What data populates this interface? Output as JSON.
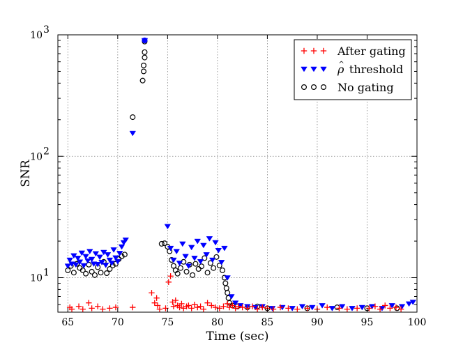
{
  "chart_data": {
    "type": "scatter",
    "xlabel": "Time (sec)",
    "ylabel": "SNR",
    "xlim": [
      64,
      100
    ],
    "ylim": [
      5.2,
      1000
    ],
    "y_scale": "log",
    "grid": true,
    "legend_position": "top-right",
    "x_ticks": [
      65,
      70,
      75,
      80,
      85,
      90,
      95,
      100
    ],
    "x_tick_labels": [
      "65",
      "70",
      "75",
      "80",
      "85",
      "90",
      "95",
      "100"
    ],
    "y_ticks": [
      {
        "value": 10,
        "base": "10",
        "exp": "1"
      },
      {
        "value": 100,
        "base": "10",
        "exp": "2"
      },
      {
        "value": 1000,
        "base": "10",
        "exp": "3"
      }
    ],
    "series": [
      {
        "name": "After gating",
        "marker": "plus",
        "color": "#ff0000",
        "x": [
          65.2,
          65.4,
          66.1,
          66.5,
          67.1,
          67.4,
          68.0,
          68.5,
          69.2,
          69.8,
          71.5,
          73.4,
          73.7,
          73.9,
          74.0,
          74.2,
          74.8,
          75.1,
          75.3,
          75.5,
          75.6,
          75.8,
          76.0,
          76.2,
          76.4,
          76.6,
          76.9,
          77.1,
          77.4,
          77.7,
          78.0,
          78.3,
          78.6,
          79.0,
          79.4,
          79.8,
          80.2,
          80.6,
          81.0,
          81.2,
          81.5,
          81.8,
          82.1,
          82.5,
          83.0,
          83.5,
          84.0,
          84.5,
          85.0,
          85.6,
          86.3,
          87.1,
          88.0,
          89.0,
          90.0,
          91.0,
          92.2,
          93.0,
          94.0,
          95.2,
          95.8,
          96.3,
          96.8,
          97.3,
          97.9,
          98.4
        ],
        "y": [
          5.7,
          5.5,
          5.8,
          5.5,
          6.2,
          5.6,
          5.8,
          5.5,
          5.6,
          5.7,
          5.7,
          7.5,
          6.2,
          6.8,
          5.9,
          5.5,
          5.6,
          9.2,
          10.3,
          6.3,
          5.8,
          6.5,
          5.9,
          5.7,
          6.1,
          5.6,
          5.8,
          5.9,
          5.6,
          6.0,
          5.7,
          5.8,
          5.5,
          6.2,
          5.9,
          5.7,
          5.6,
          5.8,
          6.1,
          5.7,
          5.9,
          5.6,
          5.8,
          5.7,
          5.6,
          5.8,
          5.5,
          5.7,
          5.6,
          5.5,
          5.7,
          5.6,
          5.5,
          5.6,
          5.5,
          5.7,
          5.6,
          5.5,
          5.6,
          5.6,
          5.8,
          5.5,
          5.9,
          5.6,
          5.7,
          5.5
        ]
      },
      {
        "name": "ρ̂ threshold",
        "legend_base": "ρ",
        "legend_accent": "^",
        "legend_suffix": " threshold",
        "marker": "triangle-down",
        "color": "#0000ff",
        "x": [
          65.0,
          65.2,
          65.4,
          65.6,
          65.8,
          66.0,
          66.2,
          66.4,
          66.6,
          66.8,
          67.0,
          67.2,
          67.4,
          67.6,
          67.8,
          68.0,
          68.2,
          68.4,
          68.6,
          68.8,
          69.0,
          69.2,
          69.4,
          69.6,
          69.8,
          70.0,
          70.2,
          70.4,
          70.6,
          70.8,
          71.5,
          72.7,
          75.0,
          75.3,
          75.6,
          75.9,
          76.2,
          76.5,
          76.8,
          77.1,
          77.4,
          77.7,
          78.0,
          78.3,
          78.6,
          78.9,
          79.2,
          79.5,
          79.8,
          80.1,
          80.4,
          80.7,
          81.0,
          81.4,
          81.8,
          82.3,
          83.0,
          83.8,
          84.5,
          85.5,
          86.5,
          87.5,
          88.5,
          89.5,
          90.5,
          91.5,
          92.5,
          93.5,
          94.5,
          95.5,
          96.5,
          97.5,
          98.5,
          99.2,
          99.6
        ],
        "y": [
          12.5,
          14.0,
          13.0,
          15.2,
          12.8,
          14.5,
          13.5,
          16.0,
          12.6,
          15.0,
          13.8,
          16.5,
          14.2,
          13.0,
          15.8,
          12.9,
          14.8,
          13.4,
          16.2,
          12.7,
          15.5,
          14.0,
          13.2,
          17.0,
          14.6,
          13.6,
          15.9,
          18.0,
          19.5,
          20.5,
          155.0,
          900.0,
          26.5,
          17.5,
          14.0,
          16.5,
          13.2,
          19.0,
          15.0,
          12.5,
          17.8,
          14.5,
          20.0,
          13.6,
          18.5,
          15.5,
          21.0,
          14.0,
          19.5,
          16.8,
          13.4,
          17.5,
          10.0,
          7.0,
          6.2,
          5.9,
          5.8,
          5.7,
          5.8,
          5.6,
          5.7,
          5.6,
          5.8,
          5.7,
          5.9,
          5.6,
          5.8,
          5.6,
          5.7,
          5.8,
          5.6,
          5.9,
          5.8,
          6.1,
          6.3
        ]
      },
      {
        "name": "No gating",
        "marker": "circle-open",
        "color": "#000000",
        "x": [
          65.0,
          65.3,
          65.6,
          65.9,
          66.2,
          66.5,
          66.8,
          67.1,
          67.4,
          67.7,
          68.0,
          68.3,
          68.6,
          68.9,
          69.2,
          69.5,
          69.8,
          70.1,
          70.4,
          70.7,
          71.5,
          72.5,
          72.6,
          72.6,
          72.7,
          72.7,
          72.7,
          74.4,
          74.7,
          75.0,
          75.2,
          75.4,
          75.6,
          75.8,
          76.0,
          76.3,
          76.6,
          76.9,
          77.2,
          77.5,
          77.8,
          78.1,
          78.4,
          78.7,
          79.0,
          79.3,
          79.6,
          79.9,
          80.2,
          80.5,
          80.7,
          80.8,
          80.9,
          81.0,
          81.1,
          81.2,
          81.5,
          82.0,
          83.0,
          84.0,
          85.0,
          89.0,
          92.0,
          95.0,
          98.0
        ],
        "y": [
          11.5,
          12.5,
          11.0,
          13.0,
          12.0,
          11.5,
          10.8,
          12.8,
          11.2,
          10.5,
          12.2,
          11.0,
          13.5,
          10.9,
          11.8,
          12.6,
          13.0,
          14.2,
          15.0,
          15.5,
          210.0,
          420.0,
          500.0,
          560.0,
          650.0,
          720.0,
          880.0,
          19.0,
          19.2,
          18.0,
          16.5,
          14.0,
          12.5,
          11.5,
          10.8,
          12.0,
          13.5,
          11.2,
          12.8,
          10.5,
          13.0,
          11.8,
          12.4,
          14.5,
          11.0,
          13.2,
          12.0,
          14.8,
          12.6,
          11.5,
          10.0,
          9.0,
          8.2,
          7.5,
          6.8,
          6.2,
          5.9,
          5.8,
          5.7,
          5.8,
          5.6,
          5.6,
          5.7,
          5.6,
          5.6
        ]
      }
    ]
  }
}
